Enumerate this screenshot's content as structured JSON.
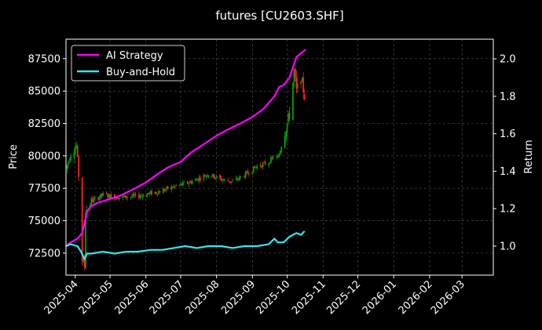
{
  "chart_data": {
    "type": "line",
    "title": "futures [CU2603.SHF]",
    "ylabel_left": "Price",
    "ylabel_right": "Return",
    "grid": true,
    "legend_position": "top-left",
    "x_range": [
      "2025-03-24",
      "2026-03-28"
    ],
    "ylim_left": [
      70800,
      89000
    ],
    "ylim_right": [
      0.845,
      2.105
    ],
    "x_ticks": [
      "2025-04",
      "2025-05",
      "2025-06",
      "2025-07",
      "2025-08",
      "2025-09",
      "2025-10",
      "2025-11",
      "2025-12",
      "2026-01",
      "2026-02",
      "2026-03"
    ],
    "x_tick_dates": [
      "2025-04-01",
      "2025-05-01",
      "2025-06-01",
      "2025-07-01",
      "2025-08-01",
      "2025-09-01",
      "2025-10-01",
      "2025-11-01",
      "2025-12-01",
      "2026-01-01",
      "2026-02-01",
      "2026-03-01"
    ],
    "y_ticks_left": [
      72500,
      75000,
      77500,
      80000,
      82500,
      85000,
      87500
    ],
    "y_ticks_right": [
      1.0,
      1.2,
      1.4,
      1.6,
      1.8,
      2.0
    ],
    "colors": {
      "up": "#00a000",
      "down": "#ff2020",
      "ai_strategy": "#ff00ff",
      "buy_hold": "#33e6ee",
      "grid": "#555555"
    },
    "series": [
      {
        "name": "AI Strategy",
        "axis": "right",
        "dates": [
          "2025-03-24",
          "2025-03-28",
          "2025-04-03",
          "2025-04-07",
          "2025-04-09",
          "2025-04-11",
          "2025-04-14",
          "2025-04-20",
          "2025-04-30",
          "2025-05-10",
          "2025-05-20",
          "2025-06-01",
          "2025-06-10",
          "2025-06-20",
          "2025-07-01",
          "2025-07-10",
          "2025-07-20",
          "2025-08-01",
          "2025-08-10",
          "2025-08-20",
          "2025-09-01",
          "2025-09-10",
          "2025-09-20",
          "2025-09-24",
          "2025-09-28",
          "2025-10-03",
          "2025-10-09",
          "2025-10-13",
          "2025-10-17"
        ],
        "values": [
          1.0,
          1.02,
          1.04,
          1.07,
          1.12,
          1.18,
          1.21,
          1.23,
          1.25,
          1.27,
          1.3,
          1.34,
          1.38,
          1.42,
          1.45,
          1.5,
          1.54,
          1.59,
          1.62,
          1.65,
          1.69,
          1.73,
          1.8,
          1.85,
          1.86,
          1.9,
          2.01,
          2.03,
          2.05
        ]
      },
      {
        "name": "Buy-and-Hold",
        "axis": "right",
        "dates": [
          "2025-03-24",
          "2025-03-28",
          "2025-04-03",
          "2025-04-06",
          "2025-04-09",
          "2025-04-11",
          "2025-04-15",
          "2025-04-25",
          "2025-05-05",
          "2025-05-15",
          "2025-05-25",
          "2025-06-05",
          "2025-06-15",
          "2025-06-25",
          "2025-07-05",
          "2025-07-15",
          "2025-07-25",
          "2025-08-05",
          "2025-08-15",
          "2025-08-25",
          "2025-09-05",
          "2025-09-15",
          "2025-09-20",
          "2025-09-23",
          "2025-09-28",
          "2025-10-03",
          "2025-10-09",
          "2025-10-13",
          "2025-10-16"
        ],
        "values": [
          1.0,
          1.01,
          1.0,
          0.97,
          0.93,
          0.96,
          0.96,
          0.97,
          0.96,
          0.97,
          0.97,
          0.98,
          0.98,
          0.99,
          1.0,
          0.99,
          1.0,
          1.0,
          0.99,
          1.0,
          1.0,
          1.01,
          1.04,
          1.02,
          1.02,
          1.05,
          1.07,
          1.06,
          1.08
        ]
      }
    ],
    "price_anchor_dates": [
      "2025-03-24",
      "2025-03-28",
      "2025-04-02",
      "2025-04-04",
      "2025-04-07",
      "2025-04-09",
      "2025-04-10",
      "2025-04-15",
      "2025-04-25",
      "2025-05-10",
      "2025-05-25",
      "2025-06-10",
      "2025-06-25",
      "2025-07-10",
      "2025-07-25",
      "2025-08-05",
      "2025-08-15",
      "2025-08-25",
      "2025-09-05",
      "2025-09-15",
      "2025-09-20",
      "2025-09-23",
      "2025-09-28",
      "2025-10-03",
      "2025-10-07",
      "2025-10-09",
      "2025-10-13",
      "2025-10-16"
    ],
    "price_anchor_values": [
      79000,
      80200,
      80800,
      78500,
      72000,
      71500,
      75800,
      76500,
      77000,
      76800,
      76900,
      77200,
      77600,
      78000,
      78600,
      78200,
      78000,
      78500,
      79200,
      79500,
      80000,
      79800,
      81500,
      83200,
      86500,
      85000,
      86000,
      84600
    ]
  }
}
